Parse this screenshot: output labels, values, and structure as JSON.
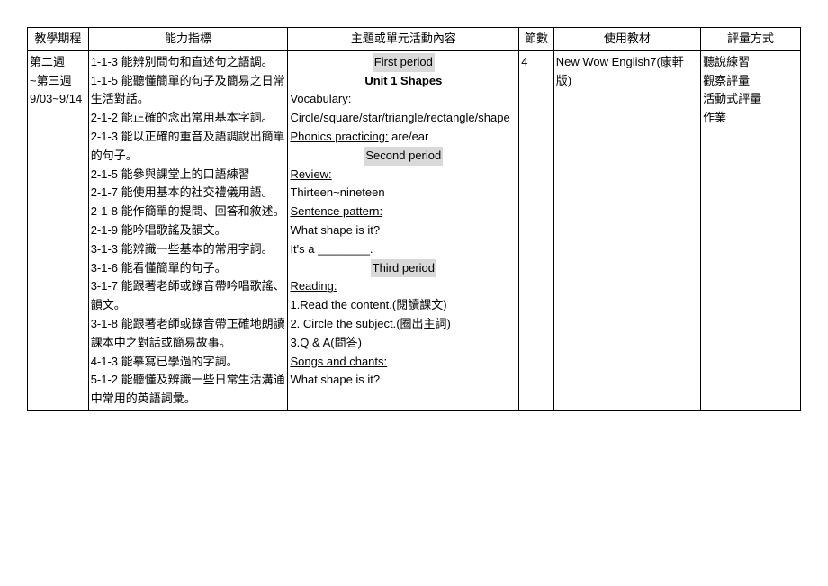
{
  "headers": {
    "schedule": "教學期程",
    "indicators": "能力指標",
    "topic": "主題或單元活動內容",
    "count": "節數",
    "materials": "使用教材",
    "assess": "評量方式"
  },
  "row": {
    "schedule": {
      "week_a": "第二週",
      "week_b": "~第三週",
      "dates": "9/03~9/14"
    },
    "indicators": [
      "1-1-3 能辨別問句和直述句之語調。",
      "1-1-5 能聽懂簡單的句子及簡易之日常生活對話。",
      "2-1-2 能正確的念出常用基本字詞。",
      "2-1-3 能以正確的重音及語調說出簡單的句子。",
      "2-1-5 能參與課堂上的口語練習",
      "2-1-7 能使用基本的社交禮儀用語。",
      "2-1-8 能作簡單的提問、回答和敘述。",
      "2-1-9 能吟唱歌謠及韻文。",
      "3-1-3 能辨識一些基本的常用字詞。",
      "3-1-6 能看懂簡單的句子。",
      "3-1-7 能跟著老師或錄音帶吟唱歌謠、 韻文。",
      "3-1-8 能跟著老師或錄音帶正確地朗讀課本中之對話或簡易故事。",
      "4-1-3 能摹寫已學過的字詞。",
      "5-1-2 能聽懂及辨識一些日常生活溝通中常用的英語詞彙。"
    ],
    "topic": {
      "first_period": "First period",
      "unit_title": "Unit 1 Shapes",
      "vocab_label": "Vocabulary:",
      "vocab_items": "Circle/square/star/triangle/rectangle/shape",
      "phonics_label": "Phonics practicing:",
      "phonics_items": " are/ear",
      "second_period": "Second period",
      "review_label": "Review:",
      "review_items": "Thirteen~nineteen",
      "sentence_label": "Sentence pattern:",
      "sentence_q": "What shape is it?",
      "sentence_a": "It's a ________.",
      "third_period": "Third period",
      "reading_label": "Reading:",
      "reading_1": "1.Read the content.(閱讀課文)",
      "reading_2": "2. Circle the subject.(圈出主詞)",
      "reading_3": "3.Q & A(問答)",
      "songs_label": "Songs and chants:",
      "songs_item": "What shape is it?"
    },
    "count": "4",
    "materials": "New Wow English7(康軒版)",
    "assess": [
      "聽說練習",
      "觀察評量",
      "活動式評量",
      "作業"
    ]
  }
}
